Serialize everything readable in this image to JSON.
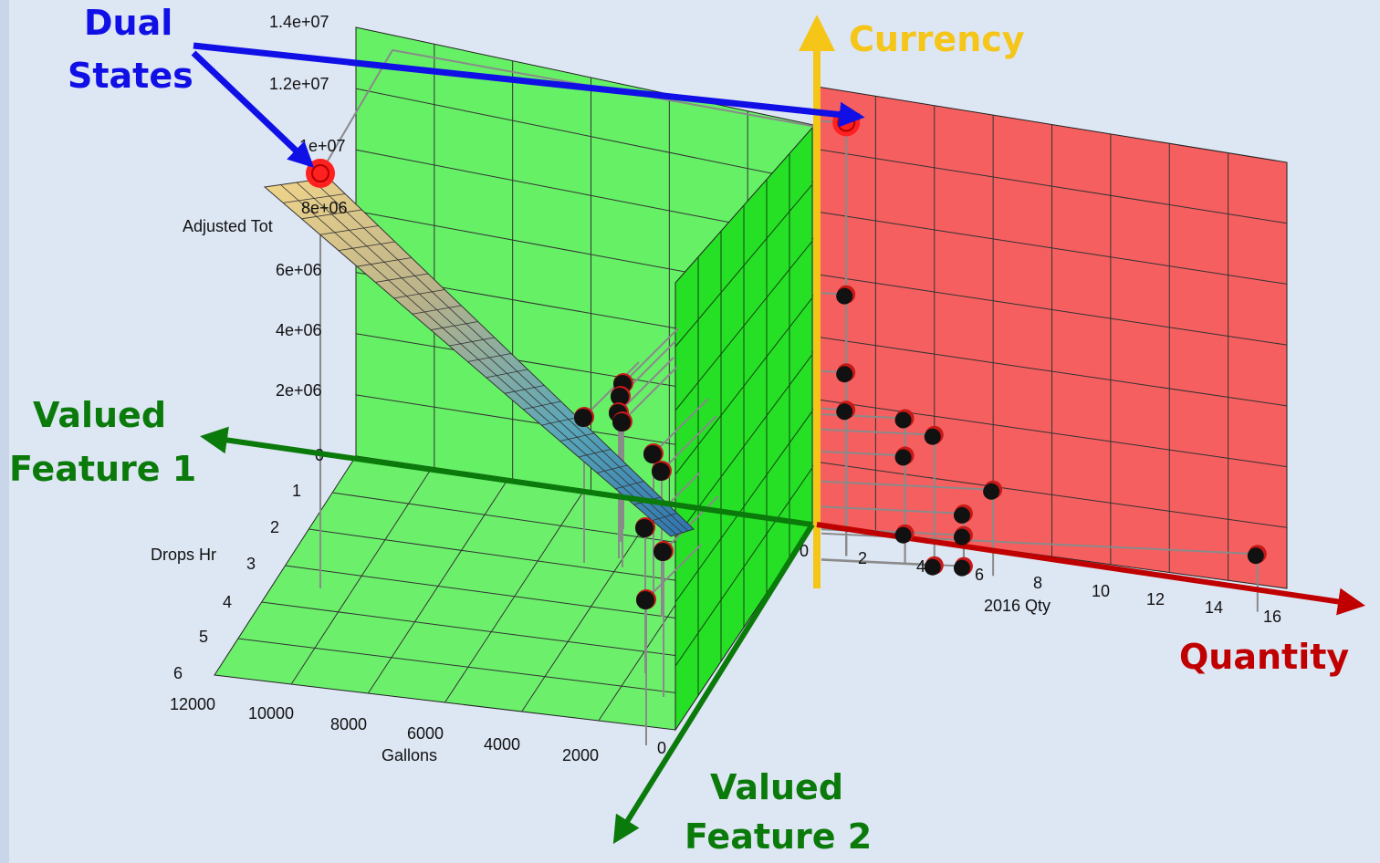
{
  "axes": {
    "z_label": "Adjusted Tot",
    "z_ticks": [
      "1.4e+07",
      "1.2e+07",
      "1e+07",
      "8e+06",
      "6e+06",
      "4e+06",
      "2e+06",
      "0"
    ],
    "drops_label": "Drops Hr",
    "drops_ticks": [
      "1",
      "2",
      "3",
      "4",
      "5",
      "6"
    ],
    "gallons_label": "Gallons",
    "gallons_ticks": [
      "12000",
      "10000",
      "8000",
      "6000",
      "4000",
      "2000",
      "0"
    ],
    "qty_label": "2016 Qty",
    "qty_ticks": [
      "0",
      "2",
      "4",
      "6",
      "8",
      "10",
      "12",
      "14",
      "16"
    ]
  },
  "callouts": {
    "dual_states_line1": "Dual",
    "dual_states_line2": "States",
    "currency": "Currency",
    "quantity": "Quantity",
    "feature1_line1": "Valued",
    "feature1_line2": "Feature 1",
    "feature2_line1": "Valued",
    "feature2_line2": "Feature 2"
  },
  "colors": {
    "left_panel": "#66f066",
    "floor_panel": "#6cf06c",
    "right_panel": "#f65f5f",
    "currency_axis": "#f5c518",
    "quantity_axis": "#c00000",
    "feature_axis": "#0a7a0a",
    "dual_arrow": "#1010e6",
    "dual_state_point": "#ff2020",
    "point": "#111111"
  },
  "chart_data": {
    "type": "scatter",
    "x_axis": "2016 Qty",
    "y_axis": "Adjusted Tot",
    "points": [
      {
        "qty": 1,
        "value": 13000000,
        "dual_state": true
      },
      {
        "qty": 1,
        "value": 7500000
      },
      {
        "qty": 1,
        "value": 5000000
      },
      {
        "qty": 1,
        "value": 3800000
      },
      {
        "qty": 3,
        "value": 3800000
      },
      {
        "qty": 4,
        "value": 3400000
      },
      {
        "qty": 3,
        "value": 2600000
      },
      {
        "qty": 6,
        "value": 1900000
      },
      {
        "qty": 5,
        "value": 1000000
      },
      {
        "qty": 3,
        "value": 100000
      },
      {
        "qty": 5,
        "value": 300000
      },
      {
        "qty": 4,
        "value": -800000
      },
      {
        "qty": 5,
        "value": -700000
      },
      {
        "qty": 15,
        "value": 1000000
      }
    ],
    "xlim": [
      0,
      16
    ],
    "ylim": [
      0,
      14000000
    ]
  }
}
